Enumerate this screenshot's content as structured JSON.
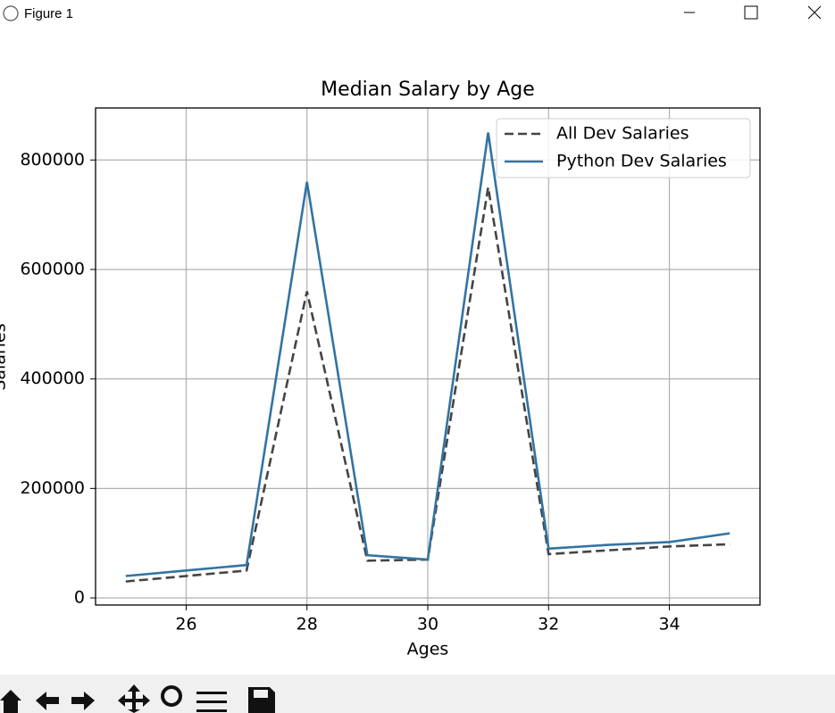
{
  "window": {
    "title": "Figure 1"
  },
  "chart_data": {
    "type": "line",
    "title": "Median Salary by Age",
    "xlabel": "Ages",
    "ylabel": "Salaries",
    "x": [
      25,
      26,
      27,
      28,
      29,
      30,
      31,
      32,
      33,
      34,
      35
    ],
    "series": [
      {
        "name": "All Dev Salaries",
        "color": "#444444",
        "dash": true,
        "values": [
          30000,
          40000,
          50000,
          560000,
          68000,
          70000,
          750000,
          80000,
          87000,
          94000,
          98000
        ]
      },
      {
        "name": "Python Dev Salaries",
        "color": "#3274a1",
        "dash": false,
        "values": [
          40000,
          50000,
          60000,
          760000,
          78000,
          70000,
          850000,
          90000,
          97000,
          102000,
          118000
        ]
      }
    ],
    "xlim": [
      24.5,
      35.5
    ],
    "xticks": [
      26,
      28,
      30,
      32,
      34
    ],
    "ylim": [
      -13000,
      895000
    ],
    "yticks": [
      0,
      200000,
      400000,
      600000,
      800000
    ],
    "grid": true,
    "legend": "upper right"
  }
}
